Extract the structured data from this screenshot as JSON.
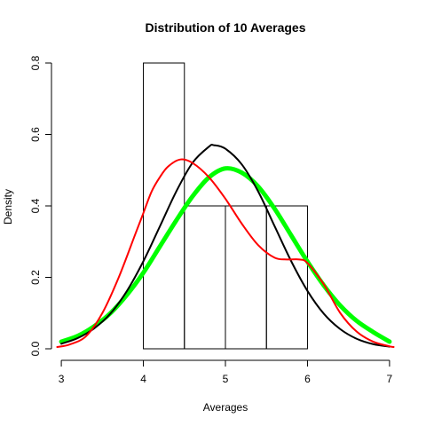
{
  "chart_data": {
    "type": "bar",
    "title": "Distribution of 10 Averages",
    "xlabel": "Averages",
    "ylabel": "Density",
    "xlim": [
      2.88,
      7.12
    ],
    "ylim": [
      0,
      0.8
    ],
    "xticks": [
      "3",
      "4",
      "5",
      "6",
      "7"
    ],
    "xtick_values": [
      3,
      4,
      5,
      6,
      7
    ],
    "yticks": [
      "0.0",
      "0.2",
      "0.4",
      "0.6",
      "0.8"
    ],
    "ytick_values": [
      0,
      0.2,
      0.4,
      0.6,
      0.8
    ],
    "grid": false,
    "histogram": {
      "bins": [
        {
          "x0": 4.0,
          "x1": 4.5,
          "density": 0.8
        },
        {
          "x0": 4.5,
          "x1": 5.0,
          "density": 0.4
        },
        {
          "x0": 5.0,
          "x1": 5.5,
          "density": 0.4
        },
        {
          "x0": 5.5,
          "x1": 6.0,
          "density": 0.4
        }
      ],
      "color": "#000000"
    },
    "series": [
      {
        "color": "#00ff00",
        "type": "line",
        "x": [
          3.0,
          3.2,
          3.4,
          3.6,
          3.8,
          4.0,
          4.2,
          4.4,
          4.6,
          4.8,
          5.0,
          5.2,
          5.4,
          5.6,
          5.8,
          6.0,
          6.2,
          6.4,
          6.6,
          6.8,
          7.0
        ],
        "y": [
          0.02,
          0.036,
          0.063,
          0.1,
          0.151,
          0.213,
          0.286,
          0.359,
          0.427,
          0.48,
          0.505,
          0.493,
          0.454,
          0.392,
          0.318,
          0.244,
          0.177,
          0.121,
          0.078,
          0.047,
          0.02
        ]
      },
      {
        "color": "#000000",
        "type": "line",
        "x": [
          3.0,
          3.2,
          3.4,
          3.6,
          3.8,
          4.0,
          4.2,
          4.4,
          4.6,
          4.8,
          4.86,
          5.0,
          5.2,
          5.4,
          5.6,
          5.8,
          6.0,
          6.2,
          6.4,
          6.6,
          6.8,
          7.0
        ],
        "y": [
          0.014,
          0.03,
          0.057,
          0.099,
          0.162,
          0.245,
          0.342,
          0.44,
          0.521,
          0.566,
          0.57,
          0.56,
          0.516,
          0.44,
          0.343,
          0.246,
          0.162,
          0.098,
          0.055,
          0.028,
          0.013,
          0.006
        ]
      },
      {
        "color": "#ff0000",
        "type": "line",
        "x": [
          2.95,
          3.1,
          3.3,
          3.5,
          3.7,
          3.9,
          4.0,
          4.1,
          4.2,
          4.3,
          4.45,
          4.6,
          4.8,
          5.0,
          5.2,
          5.4,
          5.6,
          5.75,
          5.9,
          6.0,
          6.2,
          6.4,
          6.6,
          6.8,
          7.0,
          7.05
        ],
        "y": [
          0.005,
          0.012,
          0.035,
          0.1,
          0.2,
          0.32,
          0.38,
          0.44,
          0.48,
          0.51,
          0.53,
          0.52,
          0.48,
          0.42,
          0.35,
          0.29,
          0.255,
          0.25,
          0.25,
          0.24,
          0.18,
          0.1,
          0.048,
          0.02,
          0.007,
          0.005
        ]
      }
    ]
  }
}
